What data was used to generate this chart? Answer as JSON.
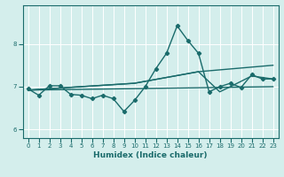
{
  "xlabel": "Humidex (Indice chaleur)",
  "background_color": "#d4eeec",
  "line_color": "#1a6b6b",
  "grid_color": "#ffffff",
  "xlim": [
    -0.5,
    23.5
  ],
  "ylim": [
    5.8,
    8.9
  ],
  "yticks": [
    6,
    7,
    8
  ],
  "xticks": [
    0,
    1,
    2,
    3,
    4,
    5,
    6,
    7,
    8,
    9,
    10,
    11,
    12,
    13,
    14,
    15,
    16,
    17,
    18,
    19,
    20,
    21,
    22,
    23
  ],
  "series": [
    {
      "x": [
        0,
        1,
        2,
        3,
        4,
        5,
        6,
        7,
        8,
        9,
        10,
        11,
        12,
        13,
        14,
        15,
        16,
        17,
        18,
        19,
        20,
        21,
        22,
        23
      ],
      "y": [
        6.95,
        6.8,
        7.02,
        7.02,
        6.82,
        6.8,
        6.72,
        6.8,
        6.72,
        6.42,
        6.68,
        7.0,
        7.42,
        7.78,
        8.42,
        8.08,
        7.78,
        6.88,
        7.0,
        7.08,
        6.98,
        7.28,
        7.18,
        7.18
      ],
      "marker": true,
      "linewidth": 1.0
    },
    {
      "x": [
        0,
        23
      ],
      "y": [
        6.92,
        7.0
      ],
      "marker": false,
      "linewidth": 1.0
    },
    {
      "x": [
        0,
        10,
        16,
        23
      ],
      "y": [
        6.92,
        7.08,
        7.35,
        7.5
      ],
      "marker": false,
      "linewidth": 1.0
    },
    {
      "x": [
        0,
        10,
        16,
        18,
        19,
        21,
        23
      ],
      "y": [
        6.92,
        7.08,
        7.35,
        6.88,
        7.0,
        7.25,
        7.18
      ],
      "marker": false,
      "linewidth": 1.0
    }
  ]
}
